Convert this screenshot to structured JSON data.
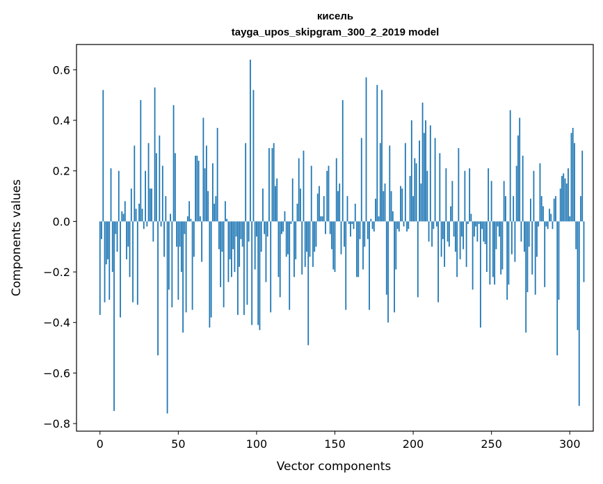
{
  "chart_data": {
    "type": "bar",
    "title": "кисель",
    "subtitle": "tayga_upos_skipgram_300_2_2019 model",
    "xlabel": "Vector components",
    "ylabel": "Components values",
    "xlim": [
      -15,
      315
    ],
    "ylim": [
      -0.83,
      0.7
    ],
    "xticks": [
      0,
      50,
      100,
      150,
      200,
      250,
      300
    ],
    "yticks": [
      -0.8,
      -0.6,
      -0.4,
      -0.2,
      0.0,
      0.2,
      0.4,
      0.6
    ],
    "ytick_labels": [
      "−0.8",
      "−0.6",
      "−0.4",
      "−0.2",
      "0.0",
      "0.2",
      "0.4",
      "0.6"
    ],
    "bar_color": "#1f77b4",
    "values": [
      -0.37,
      -0.07,
      0.52,
      -0.32,
      -0.17,
      -0.15,
      -0.31,
      0.21,
      -0.2,
      -0.75,
      -0.05,
      -0.12,
      0.2,
      -0.38,
      0.04,
      0.03,
      0.08,
      -0.15,
      -0.1,
      -0.22,
      0.13,
      -0.32,
      0.3,
      0.05,
      -0.33,
      0.07,
      0.48,
      0.05,
      -0.03,
      0.2,
      -0.02,
      0.31,
      0.13,
      0.13,
      -0.08,
      0.53,
      0.27,
      -0.53,
      0.34,
      -0.02,
      0.22,
      -0.14,
      0.1,
      -0.76,
      -0.27,
      0.03,
      -0.34,
      0.46,
      0.27,
      -0.1,
      -0.31,
      -0.1,
      -0.2,
      -0.44,
      -0.05,
      -0.36,
      0.02,
      0.08,
      0.01,
      -0.35,
      -0.14,
      0.26,
      0.26,
      0.24,
      0.02,
      -0.16,
      0.41,
      0.21,
      0.3,
      0.12,
      -0.42,
      -0.38,
      0.23,
      0.07,
      0.1,
      0.37,
      -0.11,
      -0.26,
      -0.12,
      -0.34,
      0.08,
      0.01,
      -0.24,
      -0.15,
      -0.22,
      -0.11,
      -0.2,
      -0.06,
      -0.37,
      -0.18,
      -0.07,
      -0.1,
      -0.37,
      0.31,
      -0.33,
      -0.08,
      0.64,
      -0.41,
      0.52,
      -0.19,
      -0.06,
      -0.41,
      -0.43,
      -0.12,
      0.13,
      -0.05,
      -0.24,
      -0.06,
      0.29,
      -0.36,
      0.29,
      0.31,
      0.14,
      0.17,
      -0.22,
      -0.3,
      -0.05,
      -0.04,
      0.04,
      -0.14,
      -0.13,
      -0.35,
      -0.01,
      0.17,
      -0.22,
      -0.15,
      0.07,
      0.25,
      0.13,
      -0.21,
      0.28,
      -0.18,
      -0.12,
      -0.49,
      -0.14,
      0.22,
      -0.18,
      -0.12,
      -0.1,
      0.11,
      0.14,
      0.02,
      0.02,
      0.1,
      -0.05,
      0.2,
      0.22,
      -0.05,
      -0.11,
      -0.19,
      -0.2,
      0.25,
      0.12,
      0.15,
      -0.13,
      0.48,
      -0.1,
      -0.35,
      0.1,
      -0.01,
      -0.06,
      -0.01,
      -0.03,
      0.07,
      -0.22,
      -0.22,
      -0.07,
      0.33,
      -0.19,
      -0.1,
      0.57,
      -0.07,
      -0.35,
      0.01,
      -0.03,
      -0.04,
      0.09,
      0.54,
      0.02,
      0.31,
      0.52,
      0.12,
      0.15,
      -0.29,
      -0.4,
      0.3,
      0.12,
      0.04,
      -0.36,
      -0.19,
      -0.03,
      -0.04,
      0.14,
      0.13,
      -0.02,
      0.31,
      -0.04,
      -0.03,
      0.18,
      0.4,
      0.1,
      0.25,
      0.23,
      -0.3,
      0.32,
      0.15,
      0.47,
      0.35,
      0.4,
      0.2,
      -0.08,
      0.38,
      -0.1,
      -0.03,
      0.33,
      -0.02,
      -0.32,
      0.27,
      -0.14,
      -0.07,
      -0.18,
      0.21,
      -0.08,
      -0.1,
      0.06,
      0.16,
      -0.06,
      -0.12,
      -0.22,
      0.29,
      -0.15,
      -0.06,
      -0.11,
      0.2,
      -0.18,
      -0.01,
      0.21,
      0.03,
      -0.27,
      -0.06,
      -0.02,
      -0.08,
      -0.01,
      -0.42,
      -0.03,
      -0.08,
      -0.09,
      -0.2,
      0.21,
      -0.25,
      0.16,
      -0.22,
      -0.25,
      -0.11,
      -0.02,
      -0.06,
      -0.21,
      -0.19,
      0.16,
      0.1,
      -0.31,
      -0.25,
      0.44,
      -0.13,
      0.1,
      -0.16,
      0.22,
      0.34,
      0.41,
      -0.08,
      0.26,
      -0.12,
      -0.44,
      -0.28,
      -0.1,
      0.09,
      -0.21,
      0.2,
      -0.29,
      -0.14,
      -0.02,
      0.23,
      0.1,
      0.06,
      -0.26,
      -0.02,
      -0.03,
      0.05,
      0.03,
      -0.03,
      0.09,
      0.1,
      -0.53,
      -0.31,
      0.13,
      0.18,
      0.19,
      0.17,
      0.15,
      0.21,
      0.02,
      0.35,
      0.37,
      0.31,
      -0.11,
      -0.43,
      -0.73,
      0.1,
      0.28,
      -0.24
    ]
  }
}
